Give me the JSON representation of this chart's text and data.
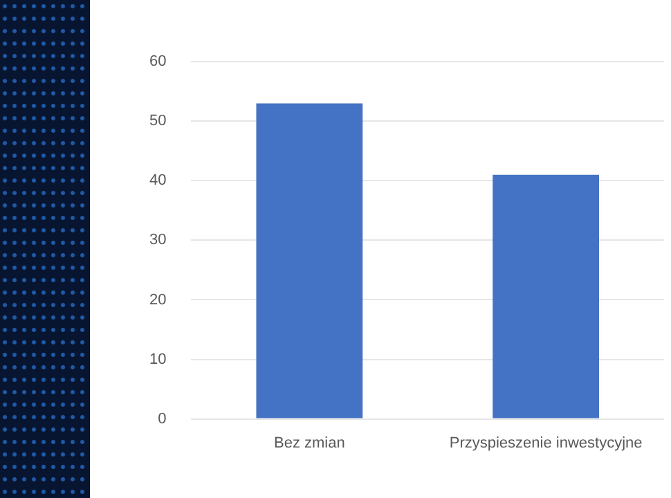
{
  "chart_data": {
    "type": "bar",
    "categories": [
      "Bez zmian",
      "Przyspieszenie inwestycyjne"
    ],
    "values": [
      53,
      41
    ],
    "color": "#4472c4",
    "ylim": [
      0,
      60
    ],
    "yticks": [
      0,
      10,
      20,
      30,
      40,
      50,
      60
    ],
    "grid": "y"
  }
}
